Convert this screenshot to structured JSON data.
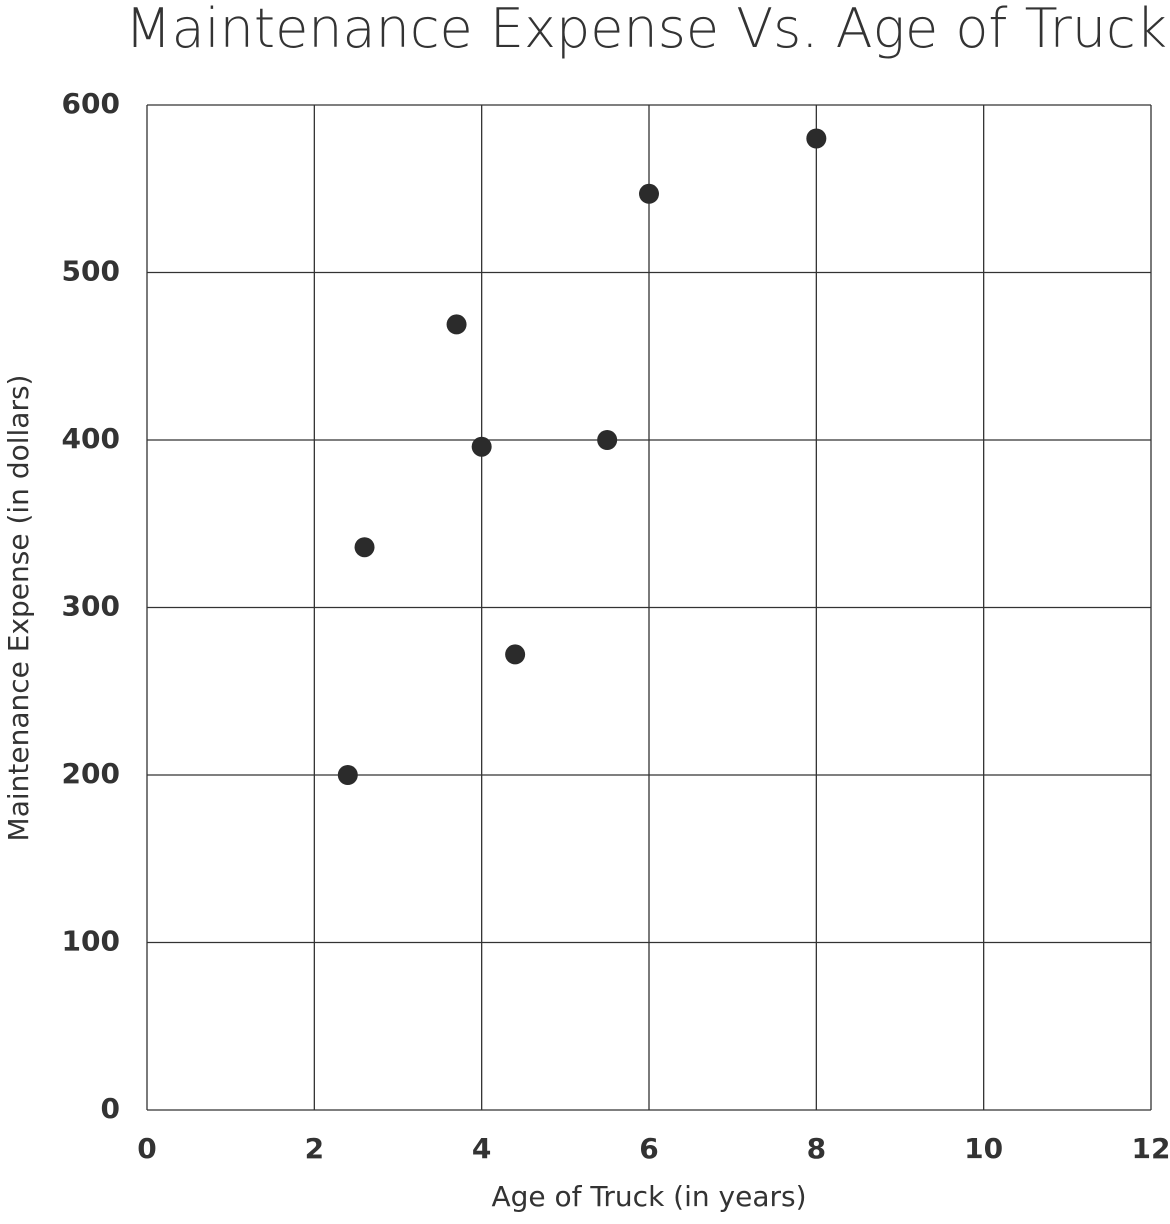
{
  "chart_data": {
    "type": "scatter",
    "title": "Maintenance Expense Vs. Age of Truck",
    "x_label": "Age of Truck (in years)",
    "y_label": "Maintenance Expense (in dollars)",
    "x": [
      2.4,
      2.6,
      3.7,
      4.0,
      4.4,
      5.5,
      6.0,
      8.0
    ],
    "values": [
      200,
      336,
      469,
      396,
      272,
      400,
      547,
      580
    ],
    "color": "#2b2b2b",
    "xlim": [
      0,
      12
    ],
    "xticks": [
      0,
      2,
      4,
      6,
      8,
      10,
      12
    ],
    "ylim": [
      0,
      600
    ],
    "yticks": [
      0,
      100,
      200,
      300,
      400,
      500,
      600
    ],
    "grid": true
  }
}
